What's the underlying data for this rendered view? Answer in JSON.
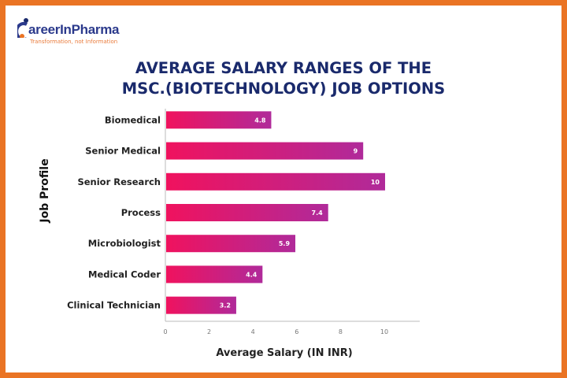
{
  "logo": {
    "name": "areerInPharma",
    "tagline": "Transformation, not Information"
  },
  "colors": {
    "border": "#ea7424",
    "title": "#1a2a6c",
    "bar_start": "#f0125e",
    "bar_end": "#b02a9a"
  },
  "chart_data": {
    "type": "bar",
    "orientation": "horizontal",
    "title": "AVERAGE SALARY RANGES OF THE MSC.(BIOTECHNOLOGY) JOB OPTIONS",
    "title_lines": [
      "AVERAGE SALARY RANGES OF THE",
      "MSC.(BIOTECHNOLOGY) JOB OPTIONS"
    ],
    "categories": [
      "Biomedical",
      "Senior Medical",
      "Senior Research",
      "Process",
      "Microbiologist",
      "Medical Coder",
      "Clinical Technician"
    ],
    "values": [
      4.8,
      9,
      10,
      7.4,
      5.9,
      4.4,
      3.2
    ],
    "data_labels": [
      "4.8",
      "9",
      "10",
      "7.4",
      "5.9",
      "4.4",
      "3.2"
    ],
    "xlabel": "Average Salary (IN INR)",
    "ylabel": "Job Profile",
    "xticks": [
      "0",
      "2",
      "4",
      "6",
      "8",
      "10"
    ],
    "xlim": [
      0,
      12
    ],
    "grid": false,
    "legend": "none"
  }
}
